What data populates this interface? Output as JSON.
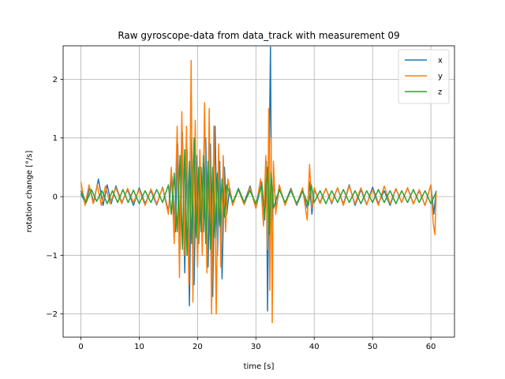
{
  "chart_data": {
    "type": "line",
    "title": "Raw gyroscope-data from data_track with measurement 09",
    "xlabel": "time [s]",
    "ylabel": "rotation change [°/s]",
    "xlim": [
      -3.05,
      64.05
    ],
    "ylim": [
      -2.395,
      2.57
    ],
    "xticks": [
      0,
      10,
      20,
      30,
      40,
      50,
      60
    ],
    "yticks": [
      -2,
      -1,
      0,
      1,
      2
    ],
    "xtick_labels": [
      "0",
      "10",
      "20",
      "30",
      "40",
      "50",
      "60"
    ],
    "ytick_labels": [
      "−2",
      "−1",
      "0",
      "1",
      "2"
    ],
    "grid": true,
    "legend_position": "top-right",
    "series": [
      {
        "name": "x",
        "color": "#1f77b4",
        "points": [
          [
            0.0,
            0.05
          ],
          [
            0.8,
            -0.12
          ],
          [
            1.5,
            0.15
          ],
          [
            2.2,
            -0.1
          ],
          [
            3.0,
            0.3
          ],
          [
            3.8,
            -0.15
          ],
          [
            4.5,
            0.2
          ],
          [
            5.2,
            -0.12
          ],
          [
            6.0,
            0.18
          ],
          [
            7.0,
            -0.1
          ],
          [
            8.0,
            0.12
          ],
          [
            9.0,
            -0.15
          ],
          [
            10.0,
            0.15
          ],
          [
            11.0,
            -0.12
          ],
          [
            12.0,
            0.1
          ],
          [
            13.0,
            -0.14
          ],
          [
            14.0,
            0.16
          ],
          [
            15.0,
            -0.25
          ],
          [
            15.6,
            0.35
          ],
          [
            16.2,
            -0.6
          ],
          [
            16.6,
            0.9
          ],
          [
            17.0,
            -0.9
          ],
          [
            17.4,
            1.1
          ],
          [
            17.8,
            -1.3
          ],
          [
            18.2,
            0.8
          ],
          [
            18.6,
            -1.86
          ],
          [
            19.0,
            1.0
          ],
          [
            19.4,
            -1.5
          ],
          [
            19.8,
            0.7
          ],
          [
            20.2,
            -0.8
          ],
          [
            20.6,
            0.5
          ],
          [
            21.0,
            -0.6
          ],
          [
            21.4,
            1.0
          ],
          [
            21.8,
            -1.2
          ],
          [
            22.2,
            0.9
          ],
          [
            22.6,
            -1.7
          ],
          [
            23.0,
            1.2
          ],
          [
            23.4,
            -1.0
          ],
          [
            23.8,
            0.6
          ],
          [
            24.2,
            -1.4
          ],
          [
            24.6,
            0.5
          ],
          [
            25.0,
            -0.3
          ],
          [
            25.5,
            0.15
          ],
          [
            26.0,
            -0.12
          ],
          [
            27.0,
            0.14
          ],
          [
            28.0,
            -0.1
          ],
          [
            29.0,
            0.18
          ],
          [
            30.0,
            -0.2
          ],
          [
            31.0,
            0.25
          ],
          [
            31.5,
            -0.4
          ],
          [
            31.8,
            0.6
          ],
          [
            32.0,
            -1.95
          ],
          [
            32.3,
            0.9
          ],
          [
            32.5,
            2.55
          ],
          [
            32.7,
            -0.5
          ],
          [
            33.0,
            0.3
          ],
          [
            33.5,
            -0.2
          ],
          [
            34.0,
            0.15
          ],
          [
            35.0,
            -0.12
          ],
          [
            36.0,
            0.14
          ],
          [
            37.0,
            -0.15
          ],
          [
            38.0,
            0.1
          ],
          [
            38.8,
            -0.2
          ],
          [
            39.2,
            0.25
          ],
          [
            39.6,
            -0.3
          ],
          [
            40.0,
            0.12
          ],
          [
            41.0,
            -0.1
          ],
          [
            42.0,
            0.14
          ],
          [
            43.0,
            -0.12
          ],
          [
            44.0,
            0.15
          ],
          [
            45.0,
            -0.13
          ],
          [
            46.0,
            0.2
          ],
          [
            47.0,
            -0.15
          ],
          [
            48.0,
            0.12
          ],
          [
            49.0,
            -0.14
          ],
          [
            50.0,
            0.16
          ],
          [
            51.0,
            -0.12
          ],
          [
            52.0,
            0.1
          ],
          [
            53.0,
            -0.15
          ],
          [
            54.0,
            0.13
          ],
          [
            55.0,
            -0.1
          ],
          [
            56.0,
            0.15
          ],
          [
            57.0,
            -0.12
          ],
          [
            58.0,
            0.1
          ],
          [
            59.0,
            -0.15
          ],
          [
            60.0,
            0.2
          ],
          [
            60.5,
            -0.3
          ],
          [
            60.9,
            0.1
          ]
        ]
      },
      {
        "name": "y",
        "color": "#ff7f0e",
        "points": [
          [
            0.0,
            0.25
          ],
          [
            0.7,
            -0.15
          ],
          [
            1.4,
            0.2
          ],
          [
            2.1,
            -0.12
          ],
          [
            2.8,
            0.2
          ],
          [
            3.5,
            -0.15
          ],
          [
            4.2,
            0.18
          ],
          [
            5.0,
            -0.12
          ],
          [
            6.0,
            0.15
          ],
          [
            7.0,
            -0.12
          ],
          [
            8.0,
            0.14
          ],
          [
            9.0,
            -0.1
          ],
          [
            10.0,
            0.12
          ],
          [
            11.0,
            -0.15
          ],
          [
            12.0,
            0.13
          ],
          [
            13.0,
            -0.12
          ],
          [
            14.0,
            0.15
          ],
          [
            15.0,
            -0.3
          ],
          [
            15.5,
            0.5
          ],
          [
            16.0,
            -0.8
          ],
          [
            16.5,
            1.2
          ],
          [
            16.9,
            -1.38
          ],
          [
            17.3,
            1.45
          ],
          [
            17.7,
            -1.0
          ],
          [
            18.1,
            1.2
          ],
          [
            18.5,
            -1.5
          ],
          [
            18.9,
            2.32
          ],
          [
            19.2,
            -1.8
          ],
          [
            19.6,
            1.3
          ],
          [
            20.0,
            -1.2
          ],
          [
            20.4,
            0.8
          ],
          [
            20.8,
            -1.0
          ],
          [
            21.2,
            1.6
          ],
          [
            21.6,
            -1.3
          ],
          [
            22.0,
            1.5
          ],
          [
            22.4,
            -2.0
          ],
          [
            22.8,
            1.2
          ],
          [
            23.2,
            -2.0
          ],
          [
            23.6,
            0.9
          ],
          [
            24.0,
            -1.2
          ],
          [
            24.4,
            0.7
          ],
          [
            24.8,
            -0.6
          ],
          [
            25.2,
            0.3
          ],
          [
            26.0,
            -0.15
          ],
          [
            27.0,
            0.12
          ],
          [
            28.0,
            -0.14
          ],
          [
            29.0,
            0.15
          ],
          [
            30.0,
            -0.2
          ],
          [
            30.8,
            0.3
          ],
          [
            31.3,
            -0.5
          ],
          [
            31.7,
            0.7
          ],
          [
            32.0,
            -0.9
          ],
          [
            32.2,
            1.5
          ],
          [
            32.4,
            -1.6
          ],
          [
            32.6,
            1.0
          ],
          [
            32.8,
            -2.15
          ],
          [
            33.0,
            0.6
          ],
          [
            33.4,
            -0.3
          ],
          [
            34.0,
            0.2
          ],
          [
            35.0,
            -0.15
          ],
          [
            36.0,
            0.12
          ],
          [
            37.0,
            -0.14
          ],
          [
            38.0,
            0.15
          ],
          [
            38.8,
            -0.4
          ],
          [
            39.2,
            0.55
          ],
          [
            39.6,
            -0.2
          ],
          [
            40.0,
            0.15
          ],
          [
            41.0,
            -0.12
          ],
          [
            42.0,
            0.14
          ],
          [
            43.0,
            -0.1
          ],
          [
            44.0,
            0.15
          ],
          [
            45.0,
            -0.15
          ],
          [
            46.0,
            0.18
          ],
          [
            47.0,
            -0.12
          ],
          [
            48.0,
            0.15
          ],
          [
            49.0,
            -0.13
          ],
          [
            50.0,
            0.12
          ],
          [
            51.0,
            -0.15
          ],
          [
            52.0,
            0.18
          ],
          [
            53.0,
            -0.12
          ],
          [
            54.0,
            0.14
          ],
          [
            55.0,
            -0.1
          ],
          [
            56.0,
            0.15
          ],
          [
            57.0,
            -0.13
          ],
          [
            58.0,
            0.12
          ],
          [
            59.0,
            -0.15
          ],
          [
            60.0,
            0.2
          ],
          [
            60.4,
            -0.45
          ],
          [
            60.7,
            -0.65
          ],
          [
            60.9,
            0.05
          ]
        ]
      },
      {
        "name": "z",
        "color": "#2ca02c",
        "points": [
          [
            0.0,
            0.1
          ],
          [
            0.9,
            -0.1
          ],
          [
            1.8,
            0.12
          ],
          [
            2.7,
            -0.08
          ],
          [
            3.6,
            0.1
          ],
          [
            4.5,
            -0.12
          ],
          [
            5.4,
            0.1
          ],
          [
            6.3,
            -0.1
          ],
          [
            7.2,
            0.12
          ],
          [
            8.1,
            -0.1
          ],
          [
            9.0,
            0.11
          ],
          [
            10.0,
            -0.12
          ],
          [
            11.0,
            0.1
          ],
          [
            12.0,
            -0.1
          ],
          [
            13.0,
            0.12
          ],
          [
            14.0,
            -0.1
          ],
          [
            15.0,
            0.2
          ],
          [
            15.5,
            -0.3
          ],
          [
            16.0,
            0.4
          ],
          [
            16.5,
            -0.6
          ],
          [
            17.0,
            0.7
          ],
          [
            17.4,
            -0.9
          ],
          [
            17.8,
            0.8
          ],
          [
            18.2,
            -1.0
          ],
          [
            18.6,
            0.6
          ],
          [
            19.0,
            -0.8
          ],
          [
            19.4,
            1.0
          ],
          [
            19.8,
            -0.7
          ],
          [
            20.2,
            0.5
          ],
          [
            20.6,
            -0.6
          ],
          [
            21.0,
            0.7
          ],
          [
            21.4,
            -0.8
          ],
          [
            21.8,
            0.6
          ],
          [
            22.2,
            -0.9
          ],
          [
            22.6,
            0.5
          ],
          [
            23.0,
            -0.7
          ],
          [
            23.4,
            0.4
          ],
          [
            23.8,
            -0.5
          ],
          [
            24.2,
            0.3
          ],
          [
            24.6,
            -0.35
          ],
          [
            25.0,
            0.2
          ],
          [
            26.0,
            -0.1
          ],
          [
            27.0,
            0.12
          ],
          [
            28.0,
            -0.1
          ],
          [
            29.0,
            0.1
          ],
          [
            30.0,
            -0.12
          ],
          [
            31.0,
            0.2
          ],
          [
            31.5,
            -0.35
          ],
          [
            32.0,
            0.5
          ],
          [
            32.3,
            -0.65
          ],
          [
            32.6,
            0.4
          ],
          [
            33.0,
            -0.2
          ],
          [
            34.0,
            0.12
          ],
          [
            35.0,
            -0.1
          ],
          [
            36.0,
            0.1
          ],
          [
            37.0,
            -0.12
          ],
          [
            38.0,
            0.1
          ],
          [
            39.0,
            -0.15
          ],
          [
            39.5,
            0.2
          ],
          [
            40.0,
            -0.1
          ],
          [
            41.0,
            0.1
          ],
          [
            42.0,
            -0.12
          ],
          [
            43.0,
            0.1
          ],
          [
            44.0,
            -0.1
          ],
          [
            45.0,
            0.12
          ],
          [
            46.0,
            -0.1
          ],
          [
            47.0,
            0.1
          ],
          [
            48.0,
            -0.12
          ],
          [
            49.0,
            0.1
          ],
          [
            50.0,
            -0.1
          ],
          [
            51.0,
            0.12
          ],
          [
            52.0,
            -0.1
          ],
          [
            53.0,
            0.1
          ],
          [
            54.0,
            -0.12
          ],
          [
            55.0,
            0.1
          ],
          [
            56.0,
            -0.1
          ],
          [
            57.0,
            0.12
          ],
          [
            58.0,
            -0.1
          ],
          [
            59.0,
            0.1
          ],
          [
            60.0,
            -0.12
          ],
          [
            60.9,
            0.08
          ]
        ]
      }
    ]
  }
}
